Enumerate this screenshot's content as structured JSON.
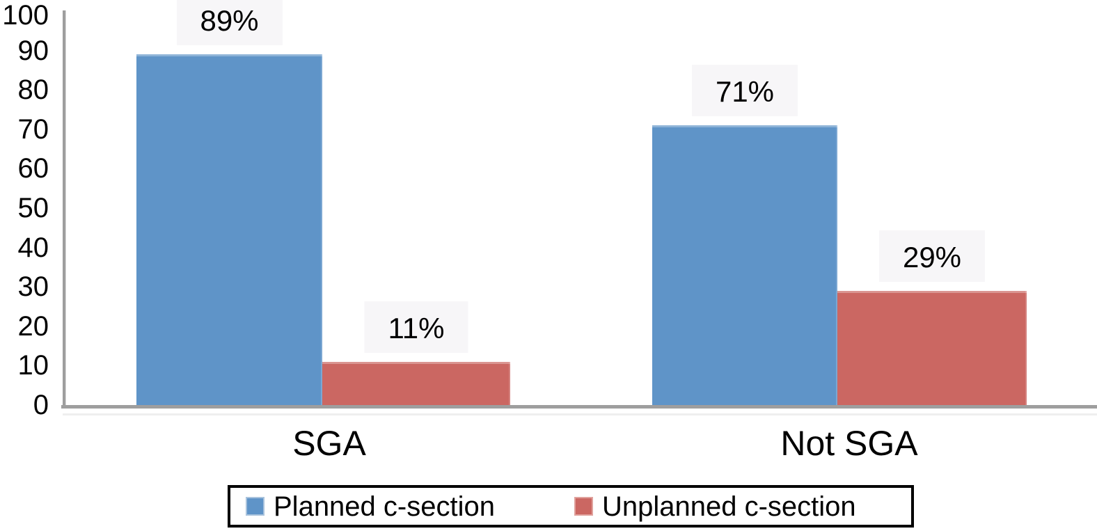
{
  "chart_data": {
    "type": "bar",
    "title": "",
    "xlabel": "",
    "ylabel": "",
    "categories": [
      "SGA",
      "Not SGA"
    ],
    "series": [
      {
        "name": "Planned c-section",
        "color": "#5F94C8",
        "marker_border": "#a9c3dd",
        "values": [
          89,
          71
        ]
      },
      {
        "name": "Unplanned c-section",
        "color": "#CB6762",
        "marker_border": "#e0a29d",
        "values": [
          11,
          29
        ]
      }
    ],
    "data_labels": [
      [
        "89%",
        "11%"
      ],
      [
        "71%",
        "29%"
      ]
    ],
    "value_suffix": "%",
    "ylim": [
      0,
      100
    ],
    "y_ticks": [
      0,
      10,
      20,
      30,
      40,
      50,
      60,
      70,
      80,
      90,
      100
    ],
    "grid": false,
    "legend_position": "bottom",
    "data_label_background": "#f7f6f8",
    "axis_color": "#9e9e9e"
  }
}
